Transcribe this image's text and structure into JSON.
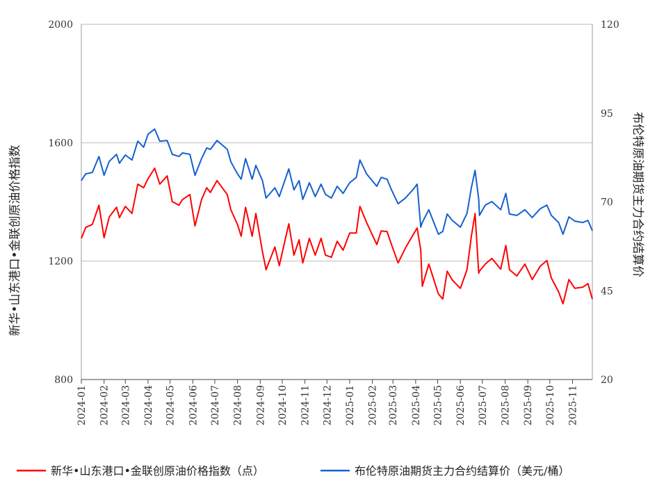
{
  "chart_data": {
    "type": "line",
    "title": "",
    "xlabel": "",
    "ylabel_left": "新华•山东港口•金联创原油价格指数",
    "ylabel_right": "布伦特原油期货主力合约结算价",
    "ylim_left": [
      800,
      2000
    ],
    "yticks_left": [
      "800",
      "1200",
      "1600",
      "2000"
    ],
    "ylim_right": [
      20,
      120
    ],
    "yticks_right": [
      "20",
      "45",
      "70",
      "95",
      "120"
    ],
    "xticks": [
      "2024-01",
      "2024-02",
      "2024-03",
      "2024-04",
      "2024-05",
      "2024-06",
      "2024-07",
      "2024-08",
      "2024-09",
      "2024-10",
      "2024-11",
      "2024-12",
      "2025-01",
      "2025-02",
      "2025-03",
      "2025-04",
      "2025-05",
      "2025-06",
      "2025-07",
      "2025-08",
      "2025-09",
      "2025-10",
      "2025-11"
    ],
    "grid": true,
    "legend_position": "bottom",
    "x": [
      "2024-01-01",
      "2024-01-07",
      "2024-01-16",
      "2024-01-25",
      "2024-02-01",
      "2024-02-08",
      "2024-02-18",
      "2024-02-22",
      "2024-03-01",
      "2024-03-10",
      "2024-03-18",
      "2024-03-26",
      "2024-04-01",
      "2024-04-10",
      "2024-04-17",
      "2024-04-27",
      "2024-05-04",
      "2024-05-13",
      "2024-05-18",
      "2024-05-28",
      "2024-06-04",
      "2024-06-13",
      "2024-06-20",
      "2024-06-25",
      "2024-07-04",
      "2024-07-18",
      "2024-07-23",
      "2024-08-01",
      "2024-08-06",
      "2024-08-12",
      "2024-08-21",
      "2024-08-26",
      "2024-09-04",
      "2024-09-09",
      "2024-09-21",
      "2024-09-27",
      "2024-10-10",
      "2024-10-17",
      "2024-10-24",
      "2024-10-29",
      "2024-11-07",
      "2024-11-15",
      "2024-11-23",
      "2024-11-29",
      "2024-12-07",
      "2024-12-15",
      "2024-12-23",
      "2025-01-01",
      "2025-01-10",
      "2025-01-15",
      "2025-01-24",
      "2025-02-07",
      "2025-02-13",
      "2025-02-21",
      "2025-02-27",
      "2025-03-08",
      "2025-03-18",
      "2025-03-29",
      "2025-04-03",
      "2025-04-08",
      "2025-04-10",
      "2025-04-19",
      "2025-05-02",
      "2025-05-08",
      "2025-05-14",
      "2025-05-21",
      "2025-06-01",
      "2025-06-10",
      "2025-06-16",
      "2025-06-21",
      "2025-06-26",
      "2025-06-27",
      "2025-07-05",
      "2025-07-14",
      "2025-07-26",
      "2025-08-02",
      "2025-08-07",
      "2025-08-17",
      "2025-08-28",
      "2025-09-07",
      "2025-09-18",
      "2025-09-27",
      "2025-10-03",
      "2025-10-13",
      "2025-10-19",
      "2025-10-27",
      "2025-11-04",
      "2025-11-15",
      "2025-11-22",
      "2025-11-28"
    ],
    "series": [
      {
        "name": "新华•山东港口•金联创原油价格指数（点）",
        "axis": "left",
        "color": "#ff0000",
        "values": [
          1277,
          1314,
          1324,
          1389,
          1279,
          1349,
          1382,
          1347,
          1385,
          1361,
          1460,
          1448,
          1479,
          1514,
          1460,
          1488,
          1401,
          1389,
          1408,
          1425,
          1319,
          1408,
          1448,
          1432,
          1472,
          1425,
          1373,
          1324,
          1284,
          1382,
          1284,
          1361,
          1232,
          1171,
          1248,
          1185,
          1326,
          1220,
          1272,
          1194,
          1277,
          1220,
          1277,
          1220,
          1213,
          1267,
          1237,
          1295,
          1295,
          1385,
          1331,
          1256,
          1302,
          1300,
          1256,
          1194,
          1244,
          1291,
          1312,
          1237,
          1115,
          1190,
          1089,
          1072,
          1166,
          1136,
          1108,
          1171,
          1284,
          1361,
          1159,
          1166,
          1190,
          1209,
          1173,
          1253,
          1171,
          1150,
          1190,
          1138,
          1183,
          1202,
          1143,
          1096,
          1056,
          1138,
          1108,
          1112,
          1124,
          1072
        ]
      },
      {
        "name": "布伦特原油期货主力合约结算价（美元/桶）",
        "axis": "right",
        "color": "#1560d0",
        "values": [
          76.0,
          77.9,
          78.3,
          82.8,
          77.5,
          81.4,
          83.4,
          80.9,
          83.2,
          81.8,
          87.1,
          85.4,
          89.1,
          90.5,
          87.1,
          87.3,
          83.4,
          82.8,
          83.8,
          83.4,
          77.5,
          82.2,
          85.2,
          84.8,
          87.3,
          84.8,
          81.3,
          77.9,
          76.4,
          82.2,
          76.4,
          80.3,
          76.0,
          71.1,
          74.0,
          71.5,
          79.3,
          73.4,
          76.0,
          70.7,
          75.4,
          71.5,
          75.0,
          72.1,
          71.1,
          74.4,
          72.4,
          75.4,
          76.9,
          81.8,
          77.9,
          74.4,
          76.9,
          76.4,
          73.4,
          69.5,
          71.1,
          73.6,
          75.0,
          62.9,
          64.2,
          67.8,
          60.9,
          61.7,
          66.6,
          64.8,
          62.9,
          66.8,
          74.0,
          78.9,
          70.7,
          66.2,
          69.1,
          70.1,
          67.8,
          72.4,
          66.6,
          66.2,
          67.8,
          65.6,
          68.1,
          69.1,
          66.2,
          64.2,
          60.9,
          65.8,
          64.6,
          64.2,
          64.8,
          61.9
        ]
      }
    ]
  }
}
